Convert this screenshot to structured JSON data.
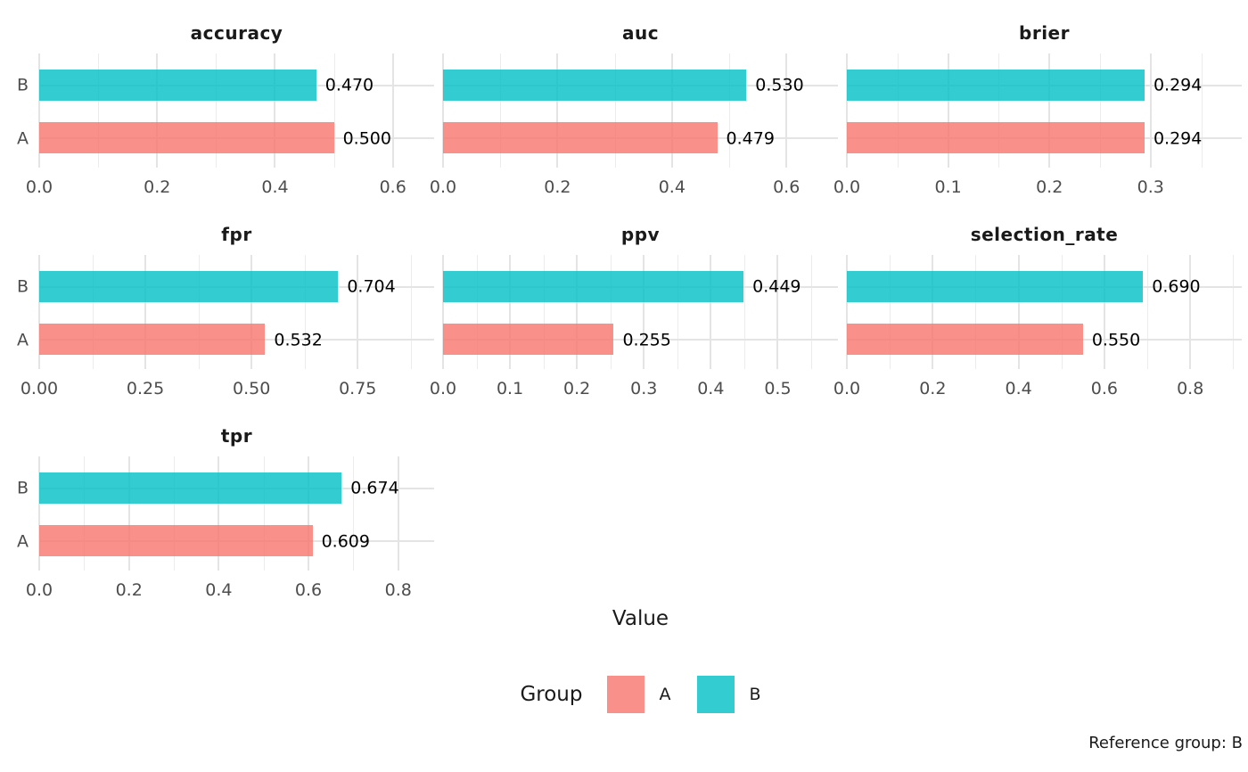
{
  "chart_data": {
    "type": "bar",
    "orientation": "horizontal",
    "categories_top_to_bottom": [
      "B",
      "A"
    ],
    "xlabel": "Value",
    "caption": "Reference group: B",
    "grid": "major-and-minor, light gray on white",
    "colors": {
      "A": "rgba(248,118,109,0.8)",
      "B": "rgba(0,191,196,0.8)",
      "A_hex_on_white": "#F8918A",
      "B_hex_on_white": "#33CCD0",
      "axis_text": "#4d4d4d",
      "grid_major": "#e4e4e4",
      "grid_minor": "#ececec"
    },
    "legend": {
      "title": "Group",
      "position": "bottom-center",
      "entries": [
        {
          "label": "A",
          "color": "rgba(248,118,109,0.8)"
        },
        {
          "label": "B",
          "color": "rgba(0,191,196,0.8)"
        }
      ]
    },
    "facets": [
      {
        "title": "accuracy",
        "xmax": 0.67,
        "tick_values": [
          0.0,
          0.2,
          0.4,
          0.6
        ],
        "tick_labels": [
          "0.0",
          "0.2",
          "0.4",
          "0.6"
        ],
        "bars": [
          {
            "group": "B",
            "value": 0.47,
            "label": "0.470"
          },
          {
            "group": "A",
            "value": 0.5,
            "label": "0.500"
          }
        ]
      },
      {
        "title": "auc",
        "xmax": 0.69,
        "tick_values": [
          0.0,
          0.2,
          0.4,
          0.6
        ],
        "tick_labels": [
          "0.0",
          "0.2",
          "0.4",
          "0.6"
        ],
        "bars": [
          {
            "group": "B",
            "value": 0.53,
            "label": "0.530"
          },
          {
            "group": "A",
            "value": 0.479,
            "label": "0.479"
          }
        ]
      },
      {
        "title": "brier",
        "xmax": 0.39,
        "tick_values": [
          0.0,
          0.1,
          0.2,
          0.3
        ],
        "tick_labels": [
          "0.0",
          "0.1",
          "0.2",
          "0.3"
        ],
        "bars": [
          {
            "group": "B",
            "value": 0.294,
            "label": "0.294"
          },
          {
            "group": "A",
            "value": 0.294,
            "label": "0.294"
          }
        ]
      },
      {
        "title": "fpr",
        "xmax": 0.93,
        "tick_values": [
          0.0,
          0.25,
          0.5,
          0.75
        ],
        "tick_labels": [
          "0.00",
          "0.25",
          "0.50",
          "0.75"
        ],
        "bars": [
          {
            "group": "B",
            "value": 0.704,
            "label": "0.704"
          },
          {
            "group": "A",
            "value": 0.532,
            "label": "0.532"
          }
        ]
      },
      {
        "title": "ppv",
        "xmax": 0.59,
        "tick_values": [
          0.0,
          0.1,
          0.2,
          0.3,
          0.4,
          0.5
        ],
        "tick_labels": [
          "0.0",
          "0.1",
          "0.2",
          "0.3",
          "0.4",
          "0.5"
        ],
        "bars": [
          {
            "group": "B",
            "value": 0.449,
            "label": "0.449"
          },
          {
            "group": "A",
            "value": 0.255,
            "label": "0.255"
          }
        ]
      },
      {
        "title": "selection_rate",
        "xmax": 0.92,
        "tick_values": [
          0.0,
          0.2,
          0.4,
          0.6,
          0.8
        ],
        "tick_labels": [
          "0.0",
          "0.2",
          "0.4",
          "0.6",
          "0.8"
        ],
        "bars": [
          {
            "group": "B",
            "value": 0.69,
            "label": "0.690"
          },
          {
            "group": "A",
            "value": 0.55,
            "label": "0.550"
          }
        ]
      },
      {
        "title": "tpr",
        "xmax": 0.88,
        "tick_values": [
          0.0,
          0.2,
          0.4,
          0.6,
          0.8
        ],
        "tick_labels": [
          "0.0",
          "0.2",
          "0.4",
          "0.6",
          "0.8"
        ],
        "bars": [
          {
            "group": "B",
            "value": 0.674,
            "label": "0.674"
          },
          {
            "group": "A",
            "value": 0.609,
            "label": "0.609"
          }
        ]
      }
    ]
  }
}
